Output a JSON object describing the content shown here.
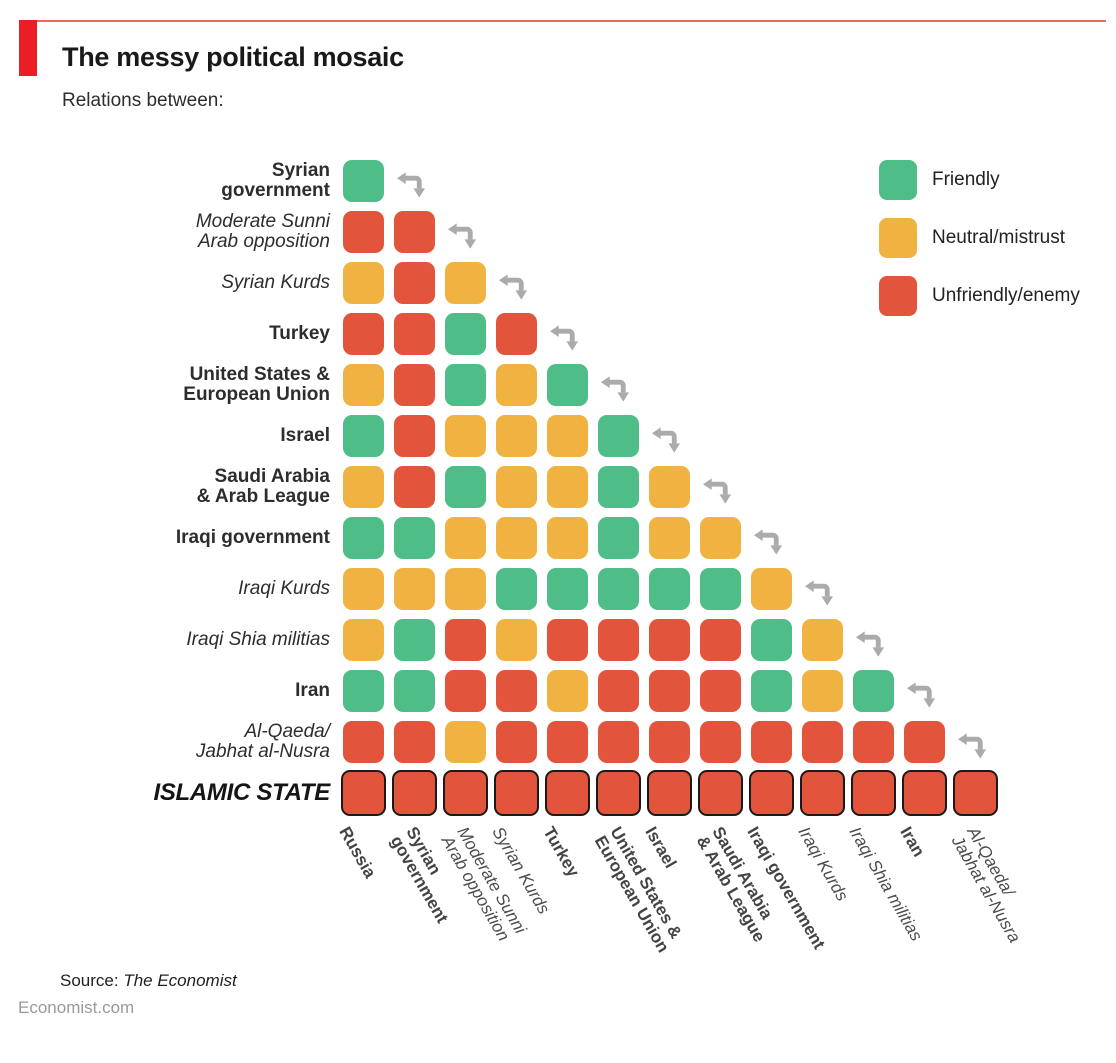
{
  "title": "The messy political mosaic",
  "subtitle": "Relations between:",
  "legend": [
    {
      "key": "F",
      "label": "Friendly",
      "color": "#4EBD87"
    },
    {
      "key": "N",
      "label": "Neutral/mistrust",
      "color": "#F0B341"
    },
    {
      "key": "U",
      "label": "Unfriendly/enemy",
      "color": "#E2553C"
    }
  ],
  "colors": {
    "friendly": "#4EBD87",
    "neutral": "#F0B341",
    "unfriendly": "#E2553C",
    "accent_red": "#EC1D25",
    "top_rule_red": "#F0685C",
    "arrow_gray": "#ABABAB",
    "outline_black": "#1A1A1A",
    "muted_text": "#9A9A9A"
  },
  "source": {
    "label": "Source:",
    "name": "The Economist",
    "site": "Economist.com"
  },
  "chart_data": {
    "type": "heatmap",
    "title": "The messy political mosaic",
    "subtitle": "Relations between:",
    "value_legend": {
      "F": "Friendly",
      "N": "Neutral/mistrust",
      "U": "Unfriendly/enemy"
    },
    "shape": "lower-triangular-matrix",
    "rows": [
      {
        "label": "Syrian government",
        "lines": [
          "Syrian",
          "government"
        ],
        "style": "bold",
        "cells": [
          "F"
        ]
      },
      {
        "label": "Moderate Sunni Arab opposition",
        "lines": [
          "Moderate Sunni",
          "Arab opposition"
        ],
        "style": "italic",
        "cells": [
          "U",
          "U"
        ]
      },
      {
        "label": "Syrian Kurds",
        "lines": [
          "Syrian Kurds"
        ],
        "style": "italic",
        "cells": [
          "N",
          "U",
          "N"
        ]
      },
      {
        "label": "Turkey",
        "lines": [
          "Turkey"
        ],
        "style": "bold",
        "cells": [
          "U",
          "U",
          "F",
          "U"
        ]
      },
      {
        "label": "United States & European Union",
        "lines": [
          "United States &",
          "European Union"
        ],
        "style": "bold",
        "cells": [
          "N",
          "U",
          "F",
          "N",
          "F"
        ]
      },
      {
        "label": "Israel",
        "lines": [
          "Israel"
        ],
        "style": "bold",
        "cells": [
          "F",
          "U",
          "N",
          "N",
          "N",
          "F"
        ]
      },
      {
        "label": "Saudi Arabia & Arab League",
        "lines": [
          "Saudi Arabia",
          "& Arab League"
        ],
        "style": "bold",
        "cells": [
          "N",
          "U",
          "F",
          "N",
          "N",
          "F",
          "N"
        ]
      },
      {
        "label": "Iraqi government",
        "lines": [
          "Iraqi government"
        ],
        "style": "bold",
        "cells": [
          "F",
          "F",
          "N",
          "N",
          "N",
          "F",
          "N",
          "N"
        ]
      },
      {
        "label": "Iraqi Kurds",
        "lines": [
          "Iraqi Kurds"
        ],
        "style": "italic",
        "cells": [
          "N",
          "N",
          "N",
          "F",
          "F",
          "F",
          "F",
          "F",
          "N"
        ]
      },
      {
        "label": "Iraqi Shia militias",
        "lines": [
          "Iraqi Shia militias"
        ],
        "style": "italic",
        "cells": [
          "N",
          "F",
          "U",
          "N",
          "U",
          "U",
          "U",
          "U",
          "F",
          "N"
        ]
      },
      {
        "label": "Iran",
        "lines": [
          "Iran"
        ],
        "style": "bold",
        "cells": [
          "F",
          "F",
          "U",
          "U",
          "N",
          "U",
          "U",
          "U",
          "F",
          "N",
          "F"
        ]
      },
      {
        "label": "Al-Qaeda/Jabhat al-Nusra",
        "lines": [
          "Al-Qaeda/",
          "Jabhat al-Nusra"
        ],
        "style": "italic",
        "cells": [
          "U",
          "U",
          "N",
          "U",
          "U",
          "U",
          "U",
          "U",
          "U",
          "U",
          "U",
          "U"
        ]
      },
      {
        "label": "ISLAMIC STATE",
        "lines": [
          "ISLAMIC STATE"
        ],
        "style": "bold-italic",
        "outlined": true,
        "cells": [
          "U",
          "U",
          "U",
          "U",
          "U",
          "U",
          "U",
          "U",
          "U",
          "U",
          "U",
          "U",
          "U"
        ]
      }
    ],
    "columns": [
      {
        "label": "Russia",
        "lines": [
          "Russia"
        ],
        "style": "bold"
      },
      {
        "label": "Syrian government",
        "lines": [
          "Syrian",
          "government"
        ],
        "style": "bold"
      },
      {
        "label": "Moderate Sunni Arab opposition",
        "lines": [
          "Moderate Sunni",
          "Arab opposition"
        ],
        "style": "italic"
      },
      {
        "label": "Syrian Kurds",
        "lines": [
          "Syrian Kurds"
        ],
        "style": "italic"
      },
      {
        "label": "Turkey",
        "lines": [
          "Turkey"
        ],
        "style": "bold"
      },
      {
        "label": "United States & European Union",
        "lines": [
          "United States &",
          "European Union"
        ],
        "style": "bold"
      },
      {
        "label": "Israel",
        "lines": [
          "Israel"
        ],
        "style": "bold"
      },
      {
        "label": "Saudi Arabia & Arab League",
        "lines": [
          "Saudi Arabia",
          "& Arab League"
        ],
        "style": "bold"
      },
      {
        "label": "Iraqi government",
        "lines": [
          "Iraqi government"
        ],
        "style": "bold"
      },
      {
        "label": "Iraqi Kurds",
        "lines": [
          "Iraqi Kurds"
        ],
        "style": "italic"
      },
      {
        "label": "Iraqi Shia militias",
        "lines": [
          "Iraqi Shia militias"
        ],
        "style": "italic"
      },
      {
        "label": "Iran",
        "lines": [
          "Iran"
        ],
        "style": "bold"
      },
      {
        "label": "Al-Qaeda/Jabhat al-Nusra",
        "lines": [
          "Al-Qaeda/",
          "Jabhat al-Nusra"
        ],
        "style": "italic"
      }
    ]
  }
}
